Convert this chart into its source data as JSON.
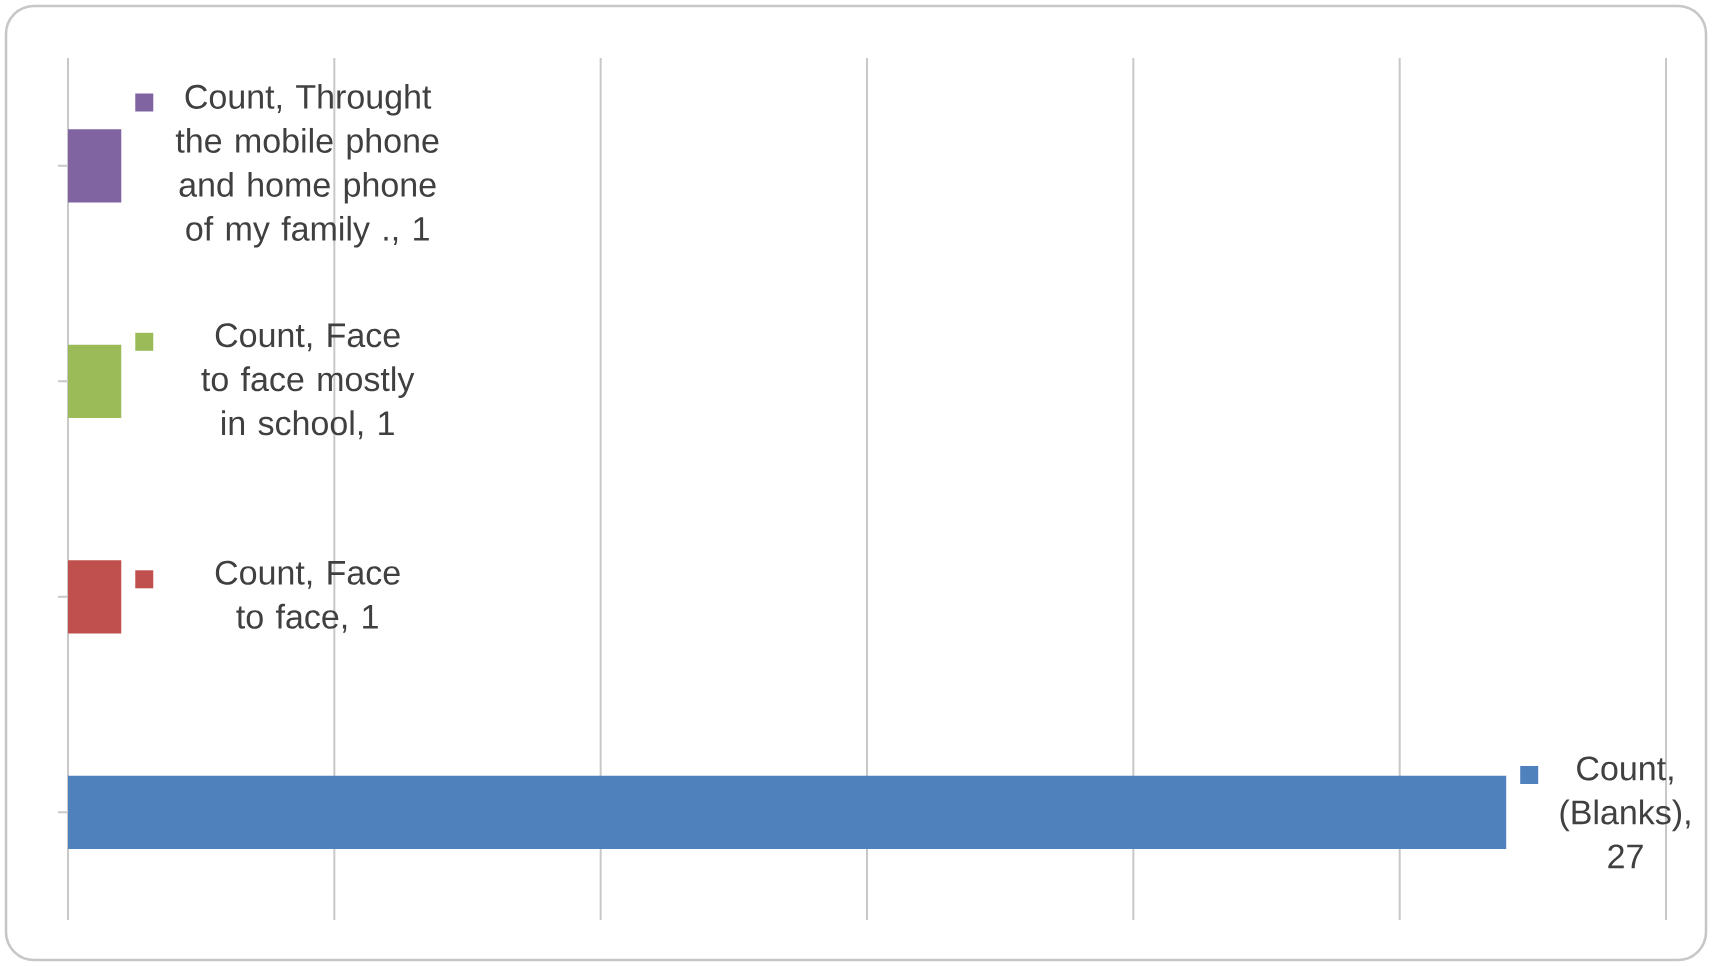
{
  "chart_data": {
    "type": "bar",
    "orientation": "horizontal",
    "categories": [
      null,
      null,
      null,
      null
    ],
    "values": [
      1,
      1,
      1,
      27
    ],
    "colors": [
      "#8064a2",
      "#9bbb59",
      "#c0504d",
      "#4f81bd"
    ],
    "value_labels": [
      "Count, Throught the mobile phone and home phone of my family ., 1",
      "Count, Face to face mostly in school, 1",
      "Count, Face to face, 1",
      "Count, (Blanks), 27"
    ],
    "xlim": [
      0,
      30
    ],
    "xticks": [
      {
        "value": 0,
        "label": null
      },
      {
        "value": 5,
        "label": null
      },
      {
        "value": 10,
        "label": null
      },
      {
        "value": 15,
        "label": null
      },
      {
        "value": 20,
        "label": null
      },
      {
        "value": 25,
        "label": null
      },
      {
        "value": 30,
        "label": null
      }
    ],
    "grid": "x"
  }
}
